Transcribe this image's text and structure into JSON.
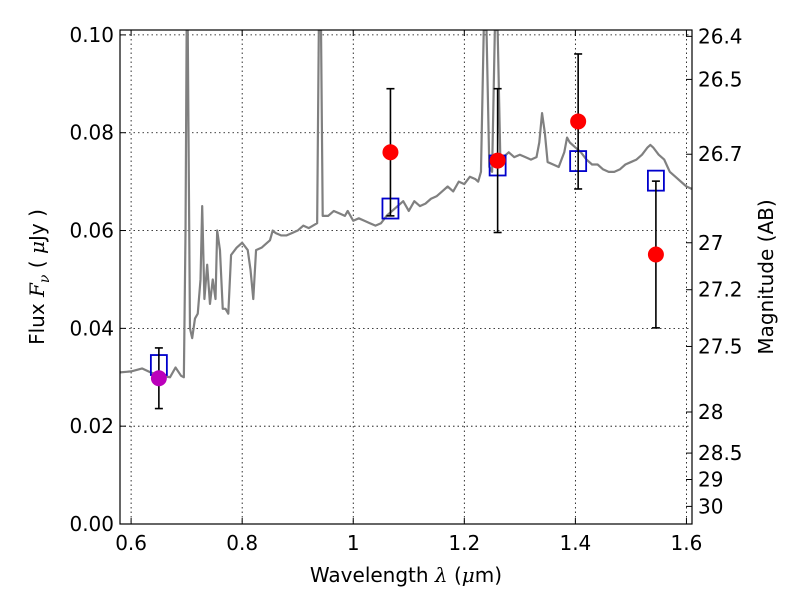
{
  "chart_data": {
    "type": "scatter",
    "title": "",
    "xlabel_prefix": "Wavelength  ",
    "xlabel_symbol": "λ",
    "xlabel_unit_open": " (",
    "xlabel_unit_mu": "μ",
    "xlabel_unit_close": "m)",
    "ylabel_prefix": "Flux  ",
    "ylabel_symbol": "F",
    "ylabel_subscript": "ν",
    "ylabel_unit_open": "  ( ",
    "ylabel_unit_mu": "μ",
    "ylabel_unit_close": "Jy )",
    "y2label": "Magnitude (AB)",
    "xlim": [
      0.58,
      1.61
    ],
    "ylim": [
      0.0,
      0.101
    ],
    "grid": true,
    "x_ticks": [
      {
        "value": 0.6,
        "label": "0.6"
      },
      {
        "value": 0.8,
        "label": "0.8"
      },
      {
        "value": 1.0,
        "label": "1"
      },
      {
        "value": 1.2,
        "label": "1.2"
      },
      {
        "value": 1.4,
        "label": "1.4"
      },
      {
        "value": 1.6,
        "label": "1.6"
      }
    ],
    "y_ticks": [
      {
        "value": 0.0,
        "label": "0.00"
      },
      {
        "value": 0.02,
        "label": "0.02"
      },
      {
        "value": 0.04,
        "label": "0.04"
      },
      {
        "value": 0.06,
        "label": "0.06"
      },
      {
        "value": 0.08,
        "label": "0.08"
      },
      {
        "value": 0.1,
        "label": "0.10"
      }
    ],
    "y2_ticks": [
      {
        "label": "26.4",
        "flux": 0.0997
      },
      {
        "label": "26.5",
        "flux": 0.0909
      },
      {
        "label": "26.7",
        "flux": 0.0756
      },
      {
        "label": "27",
        "flux": 0.0575
      },
      {
        "label": "27.2",
        "flux": 0.0479
      },
      {
        "label": "27.5",
        "flux": 0.0363
      },
      {
        "label": "28",
        "flux": 0.0229
      },
      {
        "label": "28.5",
        "flux": 0.0145
      },
      {
        "label": "29",
        "flux": 0.0091
      },
      {
        "label": "30",
        "flux": 0.0036
      }
    ],
    "series": [
      {
        "kind": "model_spectrum",
        "color": "#808080",
        "points": [
          [
            0.58,
            0.031
          ],
          [
            0.6,
            0.0312
          ],
          [
            0.62,
            0.0318
          ],
          [
            0.635,
            0.031
          ],
          [
            0.65,
            0.0305
          ],
          [
            0.66,
            0.0302
          ],
          [
            0.67,
            0.03
          ],
          [
            0.68,
            0.032
          ],
          [
            0.69,
            0.0303
          ],
          [
            0.695,
            0.03
          ],
          [
            0.698,
            0.06
          ],
          [
            0.7,
            0.101
          ],
          [
            0.702,
            0.101
          ],
          [
            0.704,
            0.07
          ],
          [
            0.706,
            0.04
          ],
          [
            0.71,
            0.038
          ],
          [
            0.715,
            0.042
          ],
          [
            0.72,
            0.043
          ],
          [
            0.725,
            0.05
          ],
          [
            0.728,
            0.065
          ],
          [
            0.732,
            0.046
          ],
          [
            0.737,
            0.053
          ],
          [
            0.742,
            0.045
          ],
          [
            0.747,
            0.05
          ],
          [
            0.752,
            0.046
          ],
          [
            0.755,
            0.06
          ],
          [
            0.76,
            0.056
          ],
          [
            0.765,
            0.044
          ],
          [
            0.77,
            0.044
          ],
          [
            0.775,
            0.043
          ],
          [
            0.78,
            0.055
          ],
          [
            0.79,
            0.0565
          ],
          [
            0.8,
            0.0575
          ],
          [
            0.81,
            0.056
          ],
          [
            0.815,
            0.052
          ],
          [
            0.82,
            0.046
          ],
          [
            0.825,
            0.056
          ],
          [
            0.835,
            0.0565
          ],
          [
            0.84,
            0.057
          ],
          [
            0.85,
            0.058
          ],
          [
            0.855,
            0.06
          ],
          [
            0.86,
            0.0595
          ],
          [
            0.87,
            0.059
          ],
          [
            0.88,
            0.059
          ],
          [
            0.89,
            0.0595
          ],
          [
            0.9,
            0.06
          ],
          [
            0.91,
            0.061
          ],
          [
            0.92,
            0.0605
          ],
          [
            0.935,
            0.0615
          ],
          [
            0.938,
            0.101
          ],
          [
            0.942,
            0.101
          ],
          [
            0.945,
            0.063
          ],
          [
            0.955,
            0.063
          ],
          [
            0.965,
            0.064
          ],
          [
            0.975,
            0.0635
          ],
          [
            0.985,
            0.063
          ],
          [
            0.99,
            0.064
          ],
          [
            1.0,
            0.062
          ],
          [
            1.01,
            0.0625
          ],
          [
            1.02,
            0.062
          ],
          [
            1.03,
            0.0615
          ],
          [
            1.04,
            0.061
          ],
          [
            1.05,
            0.0615
          ],
          [
            1.06,
            0.063
          ],
          [
            1.07,
            0.064
          ],
          [
            1.08,
            0.065
          ],
          [
            1.09,
            0.066
          ],
          [
            1.1,
            0.064
          ],
          [
            1.11,
            0.066
          ],
          [
            1.12,
            0.065
          ],
          [
            1.13,
            0.0655
          ],
          [
            1.14,
            0.0665
          ],
          [
            1.15,
            0.067
          ],
          [
            1.16,
            0.068
          ],
          [
            1.17,
            0.069
          ],
          [
            1.18,
            0.068
          ],
          [
            1.19,
            0.07
          ],
          [
            1.2,
            0.0695
          ],
          [
            1.21,
            0.071
          ],
          [
            1.22,
            0.0705
          ],
          [
            1.225,
            0.07
          ],
          [
            1.23,
            0.072
          ],
          [
            1.235,
            0.101
          ],
          [
            1.24,
            0.101
          ],
          [
            1.245,
            0.073
          ],
          [
            1.25,
            0.072
          ],
          [
            1.255,
            0.101
          ],
          [
            1.26,
            0.101
          ],
          [
            1.265,
            0.074
          ],
          [
            1.27,
            0.075
          ],
          [
            1.28,
            0.076
          ],
          [
            1.29,
            0.075
          ],
          [
            1.3,
            0.0755
          ],
          [
            1.31,
            0.075
          ],
          [
            1.32,
            0.0745
          ],
          [
            1.33,
            0.075
          ],
          [
            1.335,
            0.078
          ],
          [
            1.34,
            0.084
          ],
          [
            1.345,
            0.08
          ],
          [
            1.35,
            0.074
          ],
          [
            1.36,
            0.0735
          ],
          [
            1.37,
            0.073
          ],
          [
            1.38,
            0.076
          ],
          [
            1.385,
            0.079
          ],
          [
            1.39,
            0.078
          ],
          [
            1.4,
            0.077
          ],
          [
            1.41,
            0.076
          ],
          [
            1.42,
            0.0745
          ],
          [
            1.43,
            0.0735
          ],
          [
            1.44,
            0.0735
          ],
          [
            1.45,
            0.0725
          ],
          [
            1.46,
            0.072
          ],
          [
            1.47,
            0.072
          ],
          [
            1.48,
            0.0725
          ],
          [
            1.49,
            0.0735
          ],
          [
            1.5,
            0.074
          ],
          [
            1.51,
            0.0745
          ],
          [
            1.52,
            0.0755
          ],
          [
            1.53,
            0.077
          ],
          [
            1.535,
            0.0775
          ],
          [
            1.54,
            0.077
          ],
          [
            1.55,
            0.0755
          ],
          [
            1.56,
            0.0745
          ],
          [
            1.57,
            0.072
          ],
          [
            1.58,
            0.071
          ],
          [
            1.59,
            0.07
          ],
          [
            1.6,
            0.069
          ],
          [
            1.61,
            0.0685
          ]
        ]
      },
      {
        "kind": "model_photometry",
        "marker": "open-square",
        "color": "#0000cc",
        "points": [
          {
            "x": 0.65,
            "y": 0.0325
          },
          {
            "x": 1.067,
            "y": 0.0645
          },
          {
            "x": 1.26,
            "y": 0.0733
          },
          {
            "x": 1.405,
            "y": 0.0742
          },
          {
            "x": 1.545,
            "y": 0.0702
          }
        ]
      },
      {
        "kind": "observed_photometry",
        "marker": "filled-circle",
        "points": [
          {
            "x": 0.65,
            "y": 0.0298,
            "err_low": 0.0062,
            "err_high": 0.0062,
            "color": "#bb00bb"
          },
          {
            "x": 1.067,
            "y": 0.076,
            "err_low": 0.013,
            "err_high": 0.013,
            "color": "#ff0000"
          },
          {
            "x": 1.26,
            "y": 0.0743,
            "err_low": 0.0147,
            "err_high": 0.0147,
            "color": "#ff0000"
          },
          {
            "x": 1.405,
            "y": 0.0823,
            "err_low": 0.0138,
            "err_high": 0.0138,
            "color": "#ff0000"
          },
          {
            "x": 1.545,
            "y": 0.0551,
            "err_low": 0.015,
            "err_high": 0.015,
            "color": "#ff0000"
          }
        ]
      }
    ]
  }
}
